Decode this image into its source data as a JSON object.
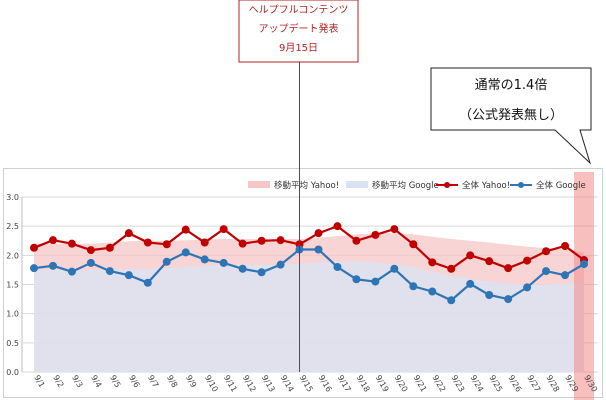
{
  "announcement": {
    "line1": "ヘルプフルコンテンツ",
    "line2": "アップデート発表",
    "line3": "9月15日",
    "color": "#b22222"
  },
  "speech": {
    "line1": "通常の1.4倍",
    "line2": "（公式発表無し）"
  },
  "chart_data": {
    "type": "line",
    "title": "",
    "xlabel": "",
    "ylabel": "",
    "ylim": [
      0,
      3.0
    ],
    "yticks": [
      "0.0",
      "0.5",
      "1.0",
      "1.5",
      "2.0",
      "2.5",
      "3.0"
    ],
    "grid": true,
    "legend_position": "top-right",
    "categories": [
      "9/1",
      "9/2",
      "9/3",
      "9/4",
      "9/5",
      "9/6",
      "9/7",
      "9/8",
      "9/9",
      "9/10",
      "9/11",
      "9/12",
      "9/13",
      "9/14",
      "9/15",
      "9/16",
      "9/17",
      "9/18",
      "9/19",
      "9/20",
      "9/21",
      "9/22",
      "9/23",
      "9/24",
      "9/25",
      "9/26",
      "9/27",
      "9/28",
      "9/29",
      "9/30"
    ],
    "series": [
      {
        "name": "移動平均 Yahoo!",
        "kind": "area",
        "color": "#f7c6c6",
        "values": [
          2.2,
          2.2,
          2.2,
          2.2,
          2.22,
          2.24,
          2.25,
          2.25,
          2.26,
          2.27,
          2.28,
          2.28,
          2.28,
          2.28,
          2.28,
          2.3,
          2.33,
          2.36,
          2.38,
          2.38,
          2.36,
          2.32,
          2.28,
          2.25,
          2.22,
          2.18,
          2.15,
          2.12,
          2.1,
          2.05
        ]
      },
      {
        "name": "移動平均 Google",
        "kind": "area",
        "color": "#d9e3f3",
        "values": [
          1.75,
          1.75,
          1.75,
          1.75,
          1.76,
          1.77,
          1.77,
          1.78,
          1.8,
          1.82,
          1.84,
          1.84,
          1.84,
          1.84,
          1.86,
          1.88,
          1.9,
          1.9,
          1.88,
          1.85,
          1.8,
          1.72,
          1.65,
          1.6,
          1.55,
          1.52,
          1.5,
          1.5,
          1.52,
          1.55
        ]
      },
      {
        "name": "全体 Yahoo!",
        "kind": "line",
        "color": "#c00000",
        "values": [
          2.13,
          2.26,
          2.2,
          2.09,
          2.13,
          2.38,
          2.22,
          2.19,
          2.44,
          2.22,
          2.45,
          2.2,
          2.25,
          2.26,
          2.19,
          2.38,
          2.5,
          2.25,
          2.35,
          2.45,
          2.19,
          1.88,
          1.77,
          2.0,
          1.9,
          1.78,
          1.91,
          2.07,
          2.16,
          1.92
        ]
      },
      {
        "name": "全体 Google",
        "kind": "line",
        "color": "#2e75b6",
        "values": [
          1.78,
          1.82,
          1.72,
          1.87,
          1.73,
          1.66,
          1.53,
          1.89,
          2.05,
          1.93,
          1.87,
          1.77,
          1.71,
          1.84,
          2.1,
          2.1,
          1.8,
          1.59,
          1.55,
          1.77,
          1.47,
          1.38,
          1.23,
          1.51,
          1.32,
          1.25,
          1.45,
          1.73,
          1.66,
          1.85
        ]
      }
    ]
  },
  "colors": {
    "announcement_line": "#b22222",
    "highlight_band": "#f28b8b",
    "grid": "#d9d9d9",
    "plot_area": "#ffffff"
  }
}
